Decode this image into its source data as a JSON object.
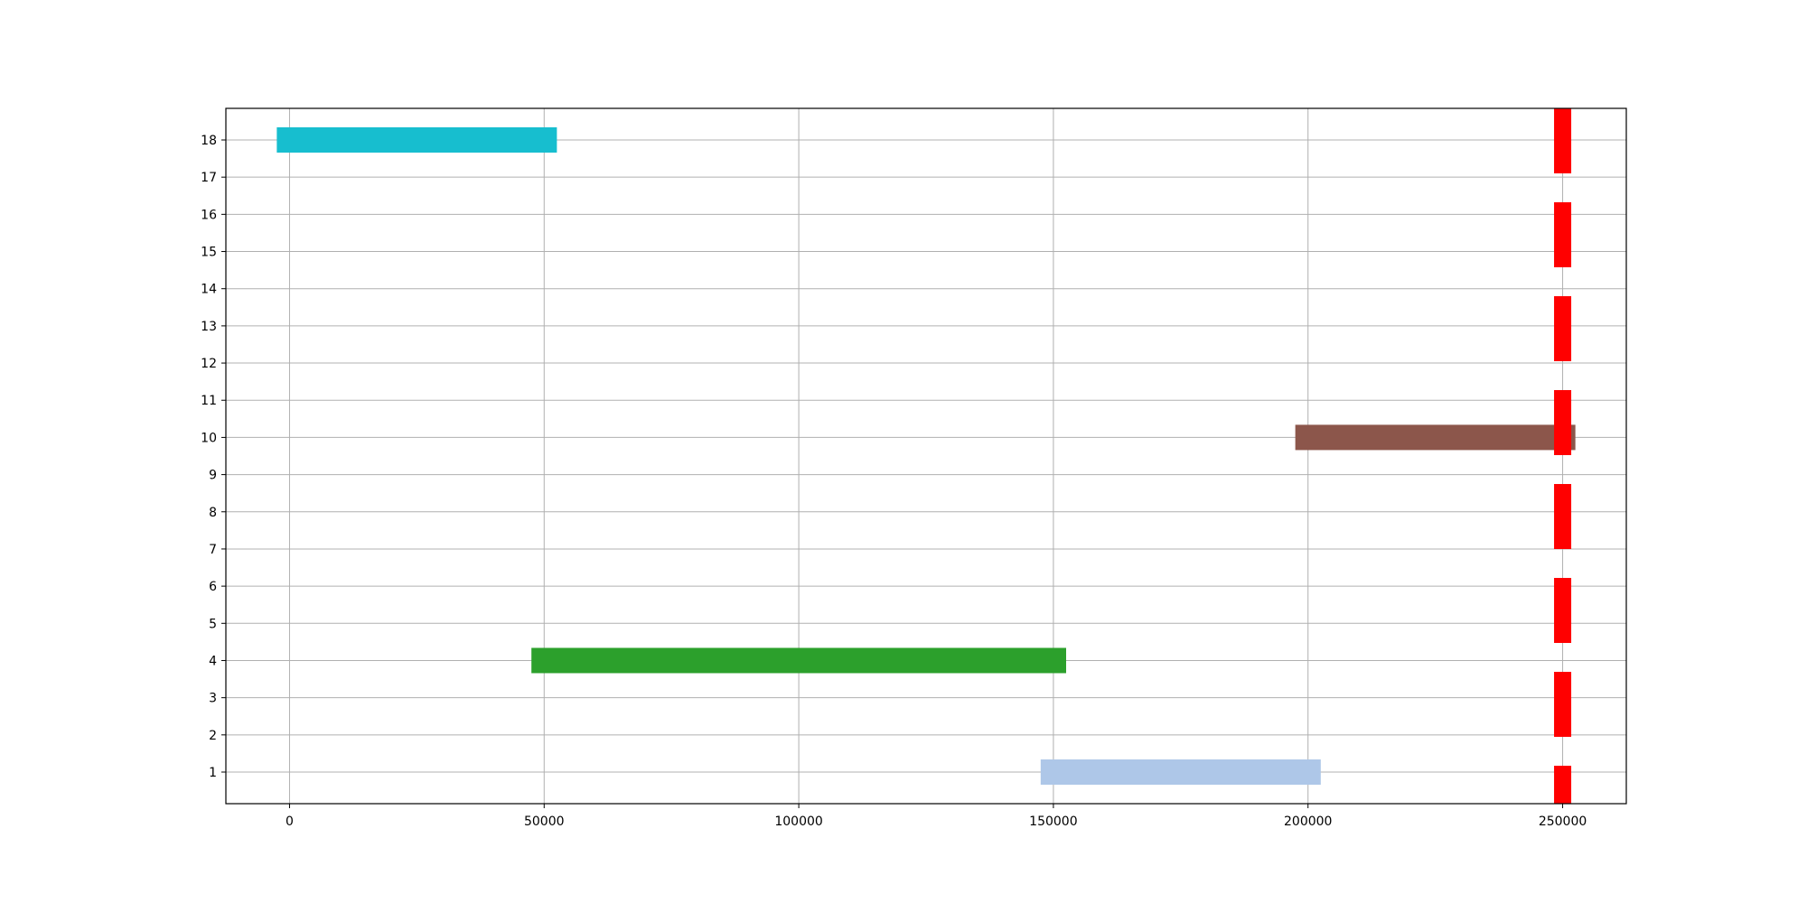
{
  "chart_data": {
    "type": "bar",
    "orientation": "horizontal-segments",
    "title": "",
    "xlabel": "",
    "ylabel": "",
    "xlim": [
      -12500,
      262500
    ],
    "ylim": [
      0.15,
      18.85
    ],
    "grid": true,
    "x_ticks": [
      0,
      50000,
      100000,
      150000,
      200000,
      250000
    ],
    "x_tick_labels": [
      "0",
      "50000",
      "100000",
      "150000",
      "200000",
      "250000"
    ],
    "y_ticks": [
      1,
      2,
      3,
      4,
      5,
      6,
      7,
      8,
      9,
      10,
      11,
      12,
      13,
      14,
      15,
      16,
      17,
      18
    ],
    "y_tick_labels": [
      "1",
      "2",
      "3",
      "4",
      "5",
      "6",
      "7",
      "8",
      "9",
      "10",
      "11",
      "12",
      "13",
      "14",
      "15",
      "16",
      "17",
      "18"
    ],
    "segments": [
      {
        "y": 18,
        "x_start": -2500,
        "x_end": 52500,
        "color": "#17becf"
      },
      {
        "y": 10,
        "x_start": 197500,
        "x_end": 252500,
        "color": "#8c564b"
      },
      {
        "y": 4,
        "x_start": 47500,
        "x_end": 152500,
        "color": "#2ca02c"
      },
      {
        "y": 1,
        "x_start": 147500,
        "x_end": 202500,
        "color": "#aec7e8"
      }
    ],
    "reference_line": {
      "x": 250000,
      "style": "dashed",
      "color": "#ff0000"
    }
  }
}
